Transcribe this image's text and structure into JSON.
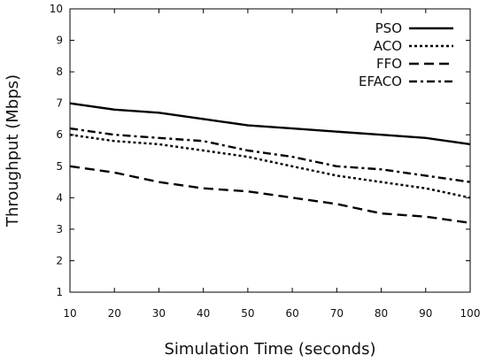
{
  "chart_data": {
    "type": "line",
    "title": "",
    "xlabel": "Simulation Time (seconds)",
    "ylabel": "Throughput (Mbps)",
    "x": [
      10,
      20,
      30,
      40,
      50,
      60,
      70,
      80,
      90,
      100
    ],
    "xlim": [
      10,
      100
    ],
    "ylim": [
      1,
      10
    ],
    "xticks": [
      "10",
      "20",
      "30",
      "40",
      "50",
      "60",
      "70",
      "80",
      "90",
      "100"
    ],
    "yticks": [
      "1",
      "2",
      "3",
      "4",
      "5",
      "6",
      "7",
      "8",
      "9",
      "10"
    ],
    "grid": false,
    "legend_position": "top-right",
    "series": [
      {
        "name": "PSO",
        "style": "solid",
        "values": [
          7.0,
          6.8,
          6.7,
          6.5,
          6.3,
          6.2,
          6.1,
          6.0,
          5.9,
          5.7
        ]
      },
      {
        "name": "ACO",
        "style": "dotted",
        "values": [
          6.0,
          5.8,
          5.7,
          5.5,
          5.3,
          5.0,
          4.7,
          4.5,
          4.3,
          4.0
        ]
      },
      {
        "name": "FFO",
        "style": "dashed",
        "values": [
          5.0,
          4.8,
          4.5,
          4.3,
          4.2,
          4.0,
          3.8,
          3.5,
          3.4,
          3.2
        ]
      },
      {
        "name": "EFACO",
        "style": "dashdot",
        "values": [
          6.2,
          6.0,
          5.9,
          5.8,
          5.5,
          5.3,
          5.0,
          4.9,
          4.7,
          4.5
        ]
      }
    ]
  }
}
